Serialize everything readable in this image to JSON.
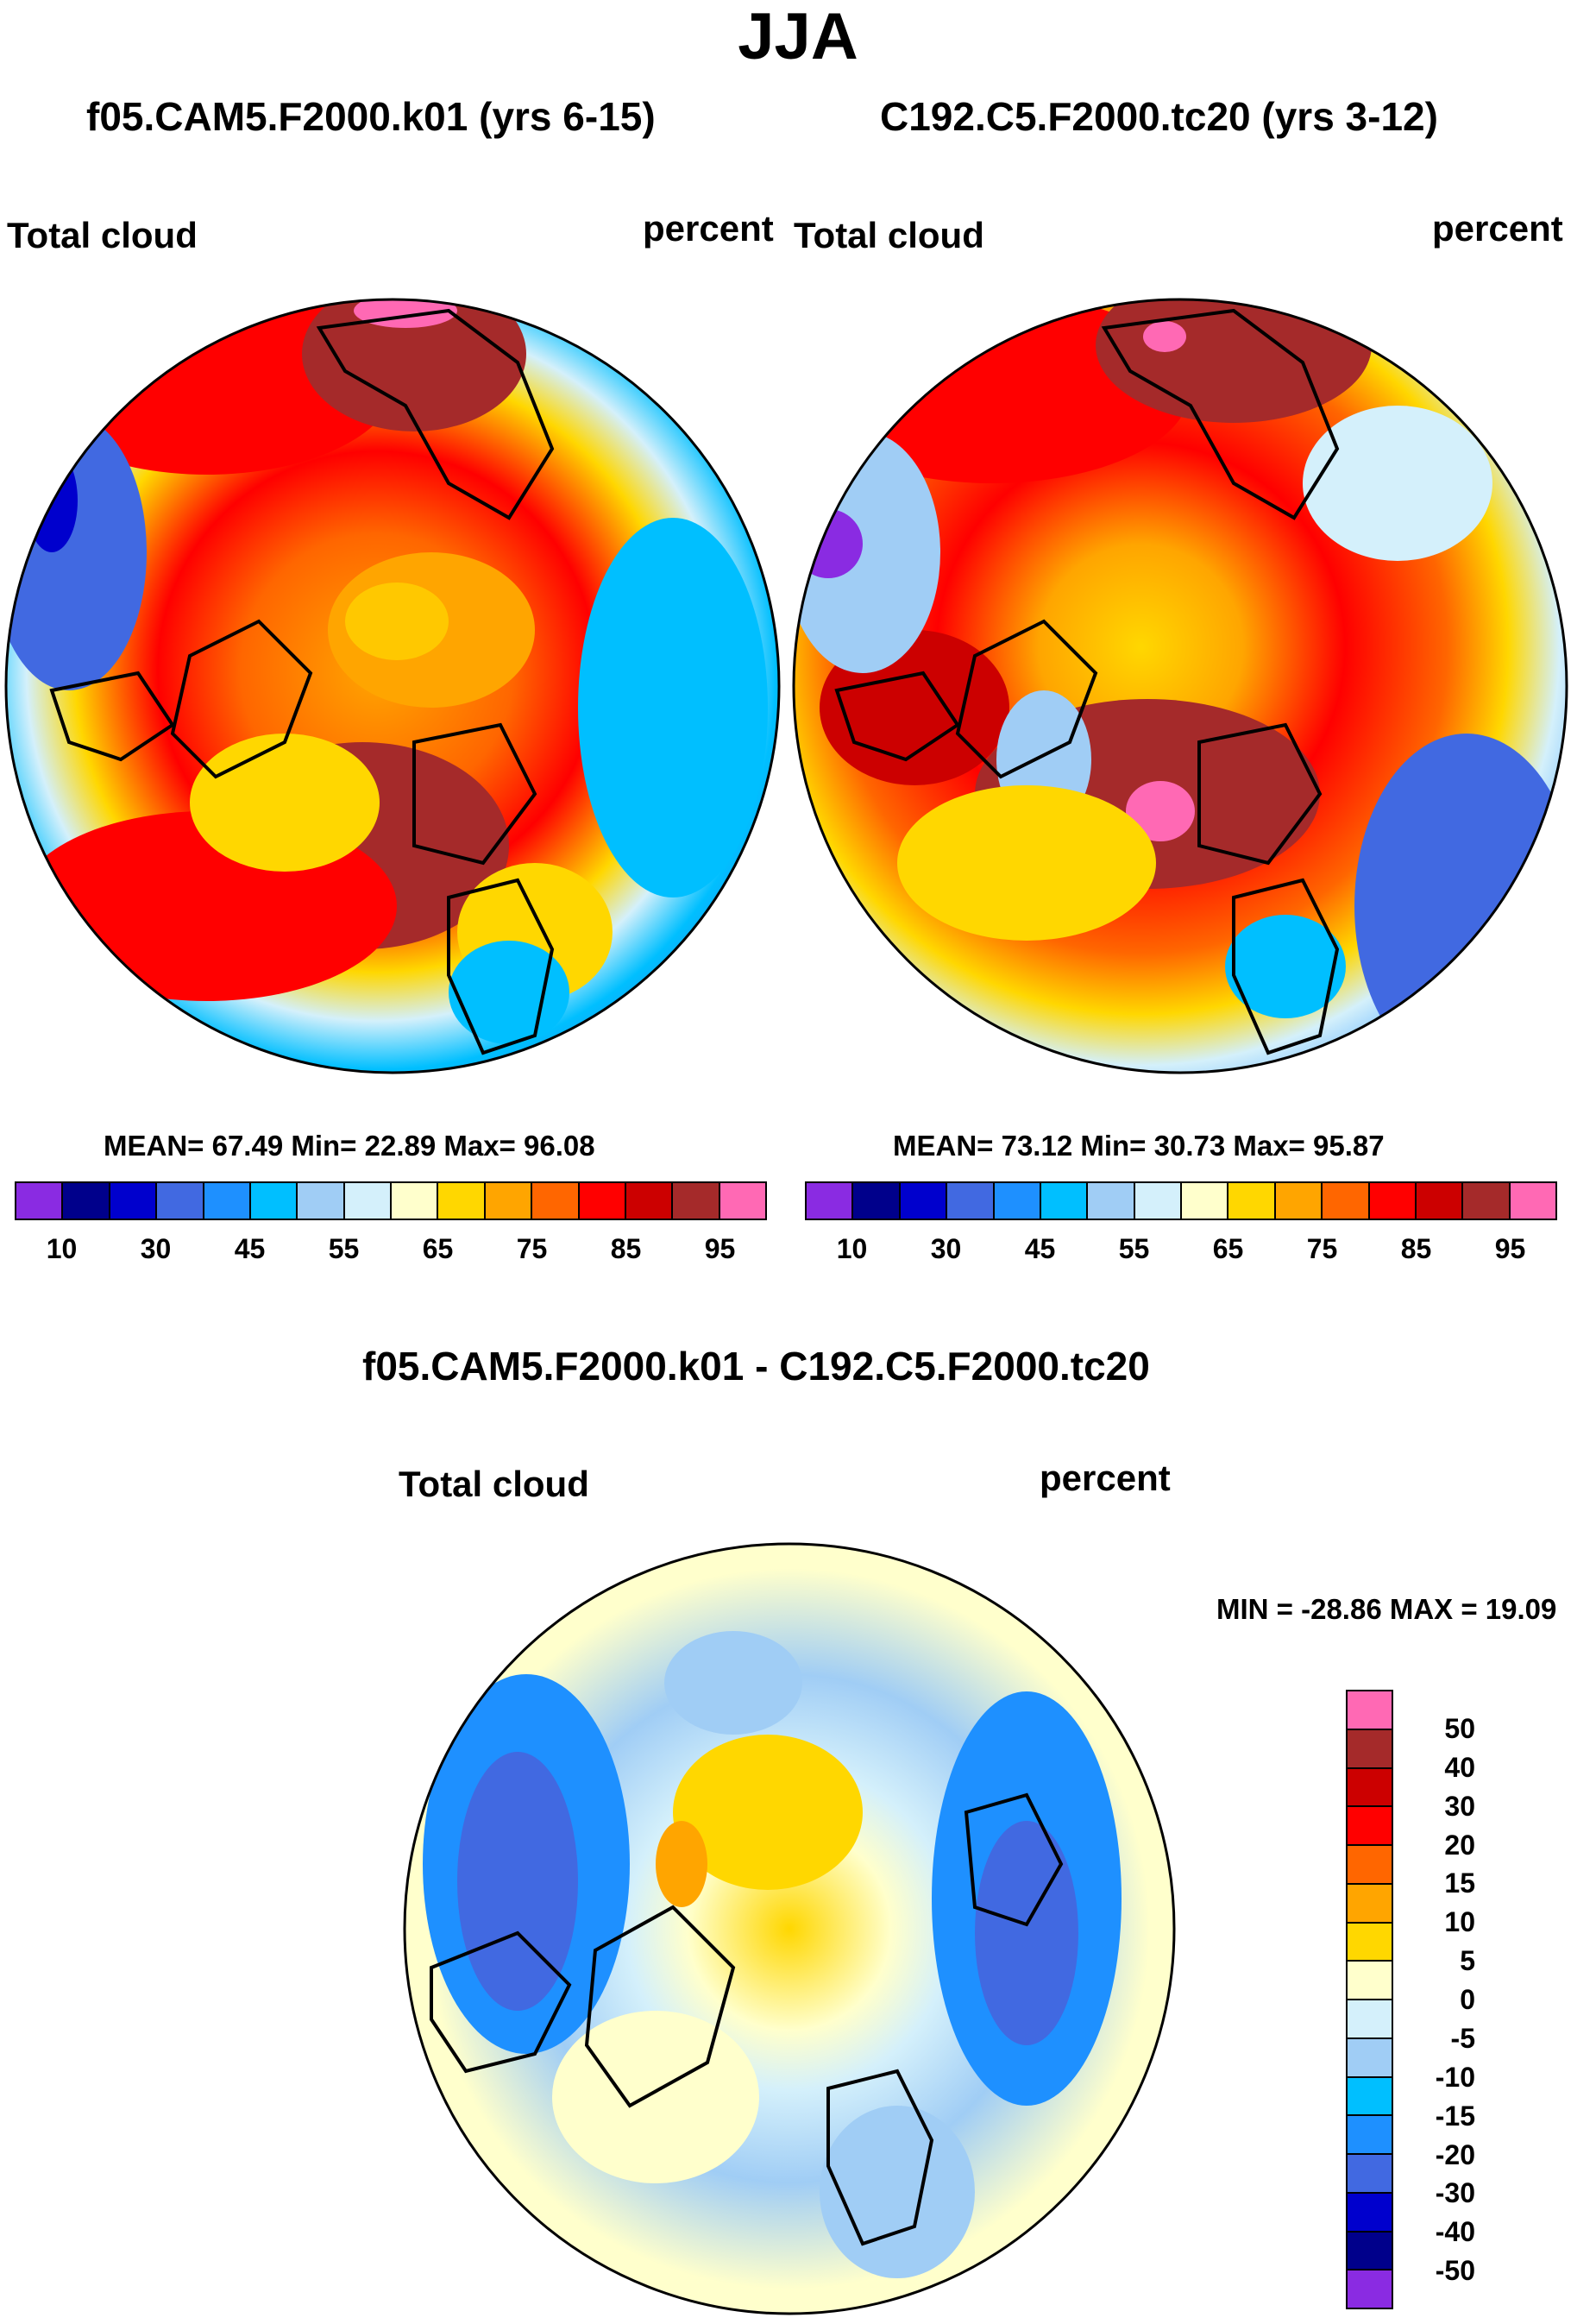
{
  "title": "JJA",
  "panel_left": {
    "case_title": "f05.CAM5.F2000.k01 (yrs 6-15)",
    "var_label": "Total cloud",
    "units": "percent",
    "stats": "MEAN=  67.49  Min=  22.89  Max=  96.08"
  },
  "panel_right": {
    "case_title": "C192.C5.F2000.tc20 (yrs 3-12)",
    "var_label": "Total cloud",
    "units": "percent",
    "stats": "MEAN=  73.12  Min=  30.73  Max=  95.87"
  },
  "panel_diff": {
    "case_title": "f05.CAM5.F2000.k01 - C192.C5.F2000.tc20",
    "var_label": "Total cloud",
    "units": "percent",
    "stats": "MIN = -28.86 MAX =  19.09"
  },
  "colorbar_abs": {
    "colors": [
      "#8a2be2",
      "#00008b",
      "#0000cd",
      "#4169e1",
      "#1e90ff",
      "#00bfff",
      "#a0cdf5",
      "#d4f0fb",
      "#ffffcc",
      "#ffd700",
      "#ffa500",
      "#ff6600",
      "#ff0000",
      "#cc0000",
      "#a52a2a",
      "#ff69b4"
    ],
    "ticks": [
      "10",
      "30",
      "45",
      "55",
      "65",
      "75",
      "85",
      "95"
    ]
  },
  "colorbar_diff": {
    "colors": [
      "#ff69b4",
      "#a52a2a",
      "#cc0000",
      "#ff0000",
      "#ff6600",
      "#ffa500",
      "#ffd700",
      "#ffffcc",
      "#d4f0fb",
      "#a0cdf5",
      "#00bfff",
      "#1e90ff",
      "#4169e1",
      "#0000cd",
      "#00008b",
      "#8a2be2"
    ],
    "ticks": [
      "50",
      "40",
      "30",
      "20",
      "15",
      "10",
      "5",
      "0",
      "-5",
      "-10",
      "-15",
      "-20",
      "-30",
      "-40",
      "-50"
    ]
  }
}
